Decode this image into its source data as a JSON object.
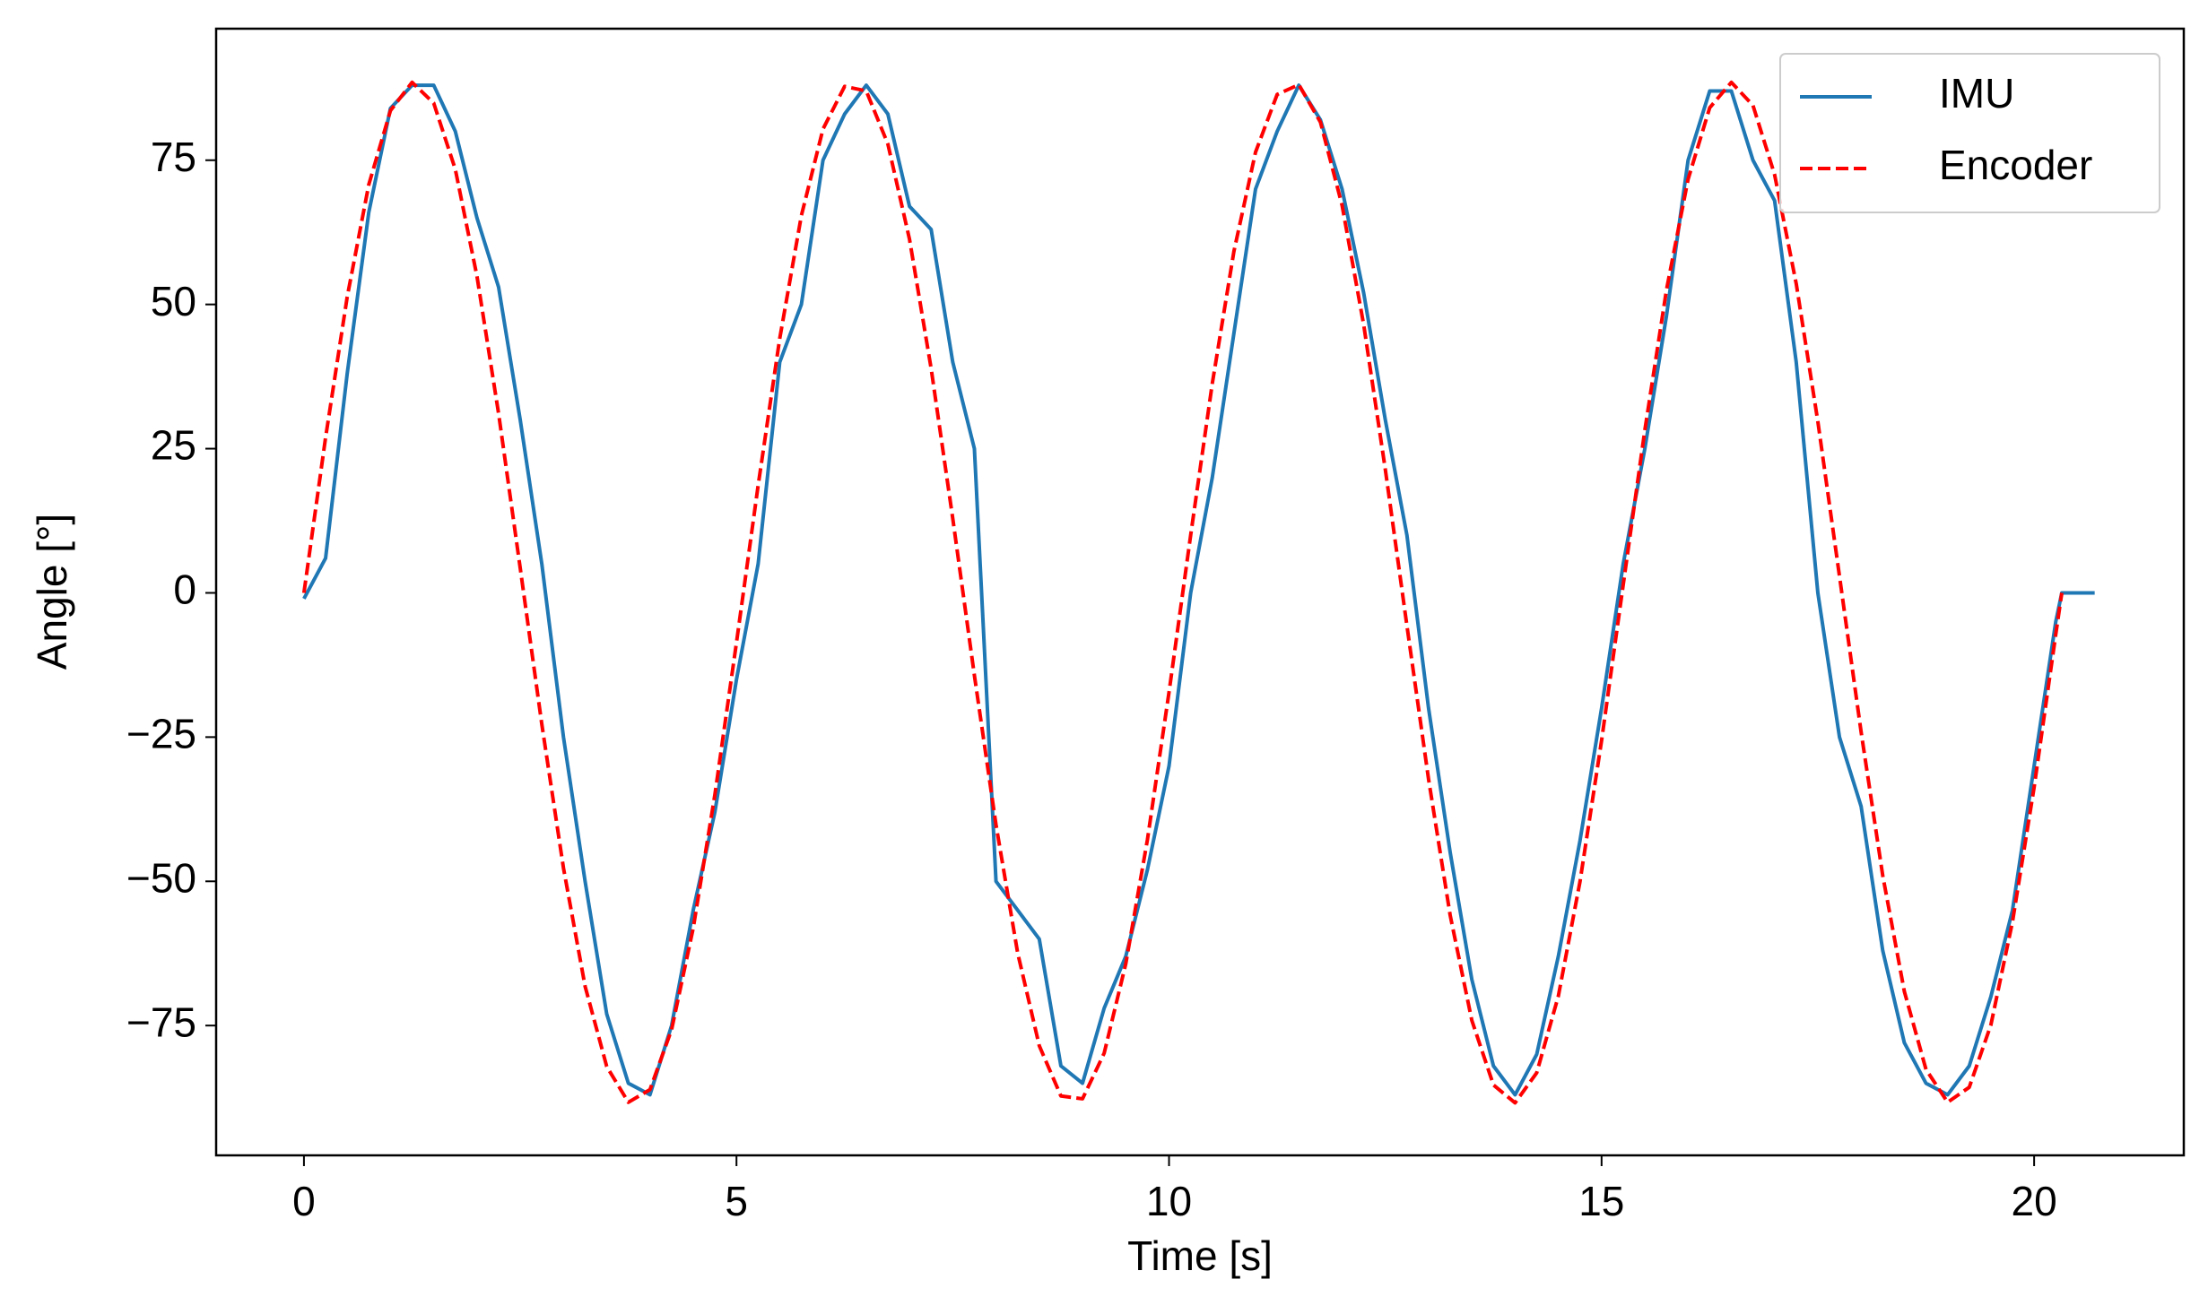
{
  "chart_data": {
    "type": "line",
    "xlabel": "Time [s]",
    "ylabel": "Angle [°]",
    "x": [
      0,
      0.25,
      0.5,
      0.75,
      1,
      1.25,
      1.5,
      1.75,
      2,
      2.25,
      2.5,
      2.75,
      3,
      3.25,
      3.5,
      3.75,
      4,
      4.25,
      4.5,
      4.75,
      5,
      5.25,
      5.5,
      5.75,
      6,
      6.25,
      6.5,
      6.75,
      7,
      7.25,
      7.5,
      7.75,
      8,
      8.25,
      8.5,
      8.75,
      9,
      9.25,
      9.5,
      9.75,
      10,
      10.25,
      10.5,
      10.75,
      11,
      11.25,
      11.5,
      11.75,
      12,
      12.25,
      12.5,
      12.75,
      13,
      13.25,
      13.5,
      13.75,
      14,
      14.25,
      14.5,
      14.75,
      15,
      15.25,
      15.5,
      15.75,
      16,
      16.25,
      16.5,
      16.75,
      17,
      17.25,
      17.5,
      17.75,
      18,
      18.25,
      18.5,
      18.75,
      19,
      19.25,
      19.5,
      19.75,
      20,
      20.25,
      20.32,
      20.5,
      20.7
    ],
    "series": [
      {
        "name": "IMU",
        "color": "#1f77b4",
        "dash": "solid",
        "values": [
          -1,
          6,
          38,
          66,
          84,
          88,
          88,
          80,
          65,
          53,
          30,
          5,
          -25,
          -50,
          -73,
          -85,
          -87,
          -75,
          -55,
          -38,
          -15,
          5,
          40,
          50,
          75,
          83,
          88,
          83,
          67,
          63,
          40,
          25,
          -50,
          -55,
          -60,
          -82,
          -85,
          -72,
          -63,
          -48,
          -30,
          0,
          20,
          45,
          70,
          80,
          88,
          82,
          70,
          52,
          30,
          10,
          -20,
          -45,
          -67,
          -82,
          -87,
          -80,
          -63,
          -43,
          -20,
          5,
          25,
          48,
          75,
          87,
          87,
          75,
          68,
          40,
          0,
          -25,
          -37,
          -62,
          -78,
          -85,
          -87,
          -82,
          -70,
          -55,
          -30,
          -5,
          0,
          0,
          0
        ]
      },
      {
        "name": "Encoder",
        "color": "#ff0000",
        "dash": "dashed",
        "values": [
          0,
          26.9,
          51.3,
          70.8,
          83.6,
          88.5,
          84.9,
          73.4,
          54.9,
          31.1,
          4.3,
          -22.8,
          -47.7,
          -68.2,
          -82.1,
          -88.3,
          -86.1,
          -75.7,
          -58.1,
          -35.0,
          -8.6,
          18.6,
          44.1,
          65.4,
          80.4,
          87.8,
          87.0,
          77.8,
          61.3,
          38.9,
          12.9,
          -14.3,
          -40.2,
          -62.4,
          -78.5,
          -87.2,
          -87.7,
          -79.8,
          -64.3,
          -42.8,
          -17.2,
          10.0,
          36.3,
          59.2,
          76.4,
          86.4,
          88.1,
          81.6,
          67.2,
          46.5,
          21.4,
          -5.7,
          -32.3,
          -55.9,
          -74.1,
          -85.3,
          -88.4,
          -83.2,
          -69.9,
          -50.1,
          -25.6,
          1.4,
          28.2,
          52.5,
          71.7,
          84.1,
          88.5,
          84.5,
          72.5,
          53.6,
          29.7,
          2.9,
          -24.1,
          -49.0,
          -69.1,
          -82.6,
          -88.3,
          -85.7,
          -74.9,
          -57.0,
          -33.7,
          -7.2,
          0,
          null,
          null
        ]
      }
    ],
    "xlim": [
      -1.015,
      21.73
    ],
    "ylim": [
      -97.5,
      97.8
    ],
    "xticks": [
      0,
      5,
      10,
      15,
      20
    ],
    "yticks": [
      {
        "value": -75,
        "label": "−75"
      },
      {
        "value": -50,
        "label": "−50"
      },
      {
        "value": -25,
        "label": "−25"
      },
      0,
      25,
      50,
      75
    ],
    "grid": false,
    "legend": "upper right"
  }
}
